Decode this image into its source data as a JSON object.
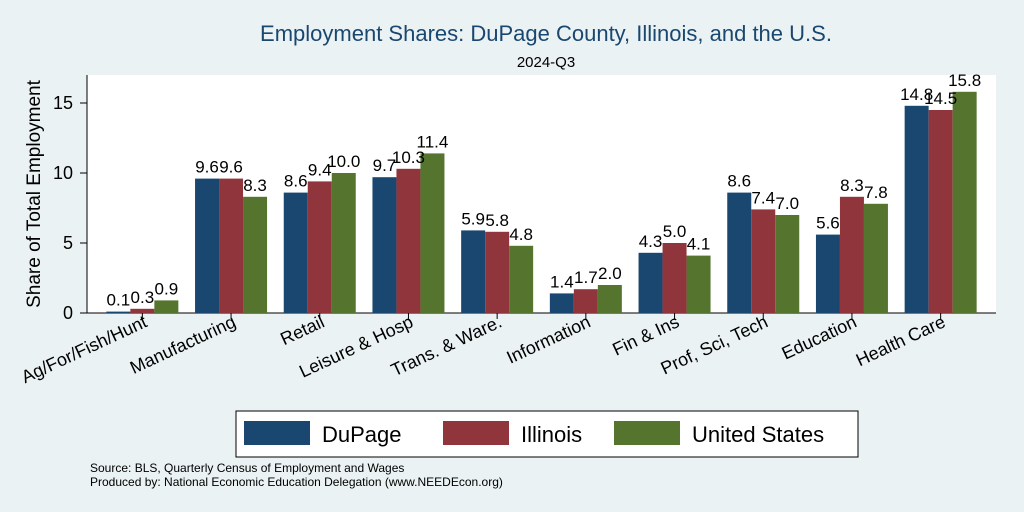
{
  "chart_data": {
    "type": "bar",
    "title": "Employment Shares: DuPage County, Illinois, and the U.S.",
    "subtitle": "2024-Q3",
    "ylabel": "Share of Total Employment",
    "xlabel": "",
    "ylim": [
      0,
      17
    ],
    "yticks": [
      0,
      5,
      10,
      15
    ],
    "grid": false,
    "legend_position": "bottom",
    "categories": [
      "Ag/For/Fish/Hunt",
      "Manufacturing",
      "Retail",
      "Leisure & Hosp",
      "Trans. & Ware.",
      "Information",
      "Fin & Ins",
      "Prof, Sci, Tech",
      "Education",
      "Health Care"
    ],
    "series": [
      {
        "name": "DuPage",
        "color": "#1a476f",
        "values": [
          0.1,
          9.6,
          8.6,
          9.7,
          5.9,
          1.4,
          4.3,
          8.6,
          5.6,
          14.8
        ]
      },
      {
        "name": "Illinois",
        "color": "#90353b",
        "values": [
          0.3,
          9.6,
          9.4,
          10.3,
          5.8,
          1.7,
          5.0,
          7.4,
          8.3,
          14.5
        ]
      },
      {
        "name": "United States",
        "color": "#55752f",
        "values": [
          0.9,
          8.3,
          10.0,
          11.4,
          4.8,
          2.0,
          4.1,
          7.0,
          7.8,
          15.8
        ]
      }
    ],
    "notes": [
      "Source: BLS, Quarterly Census of Employment and Wages",
      "Produced by: National Economic Education Delegation (www.NEEDEcon.org)"
    ]
  }
}
